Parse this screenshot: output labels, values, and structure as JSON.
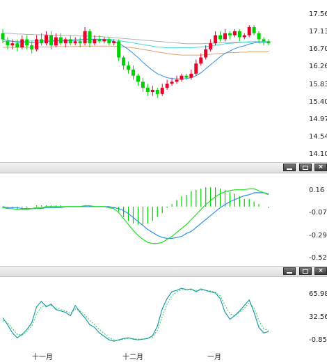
{
  "price_panel": {
    "axis_labels": [
      "17.56",
      "17.13",
      "16.70",
      "16.26",
      "15.83",
      "15.40",
      "14.97",
      "14.54",
      "14.10"
    ],
    "y_range": [
      14.1,
      17.56
    ]
  },
  "macd_panel": {
    "axis_labels": [
      "0.16",
      "-0.07",
      "-0.29",
      "-0.52"
    ],
    "y_range": [
      -0.52,
      0.16
    ]
  },
  "kdj_panel": {
    "axis_labels": [
      "65.98",
      "32.56",
      "-0.85"
    ],
    "y_range": [
      -0.85,
      65.98
    ]
  },
  "x_axis": {
    "labels": [
      "十一月",
      "十二月",
      "一月"
    ]
  },
  "panel_controls": {
    "minimize": "minimize",
    "maximize": "maximize",
    "close": "×"
  },
  "colors": {
    "up": "#e8002a",
    "down": "#00d000",
    "ma_short": "#2f8fe0",
    "ma_long": "#e0a070",
    "ma_grey": "#b0b0b0",
    "ma_cyan": "#40d8d8",
    "macd_dif": "#1fe01f",
    "macd_dea": "#2f8fe0",
    "k_line": "#1a9aa8",
    "d_line": "#22cc44"
  },
  "chart_data": [
    {
      "type": "candlestick",
      "ylim": [
        14.1,
        17.56
      ],
      "candles": [
        [
          17.1,
          16.95,
          17.2,
          16.85
        ],
        [
          16.9,
          16.8,
          17.0,
          16.7
        ],
        [
          16.8,
          16.85,
          16.95,
          16.7
        ],
        [
          16.85,
          16.75,
          16.95,
          16.65
        ],
        [
          16.75,
          16.95,
          17.05,
          16.7
        ],
        [
          16.95,
          16.8,
          17.05,
          16.7
        ],
        [
          16.8,
          16.7,
          16.9,
          16.6
        ],
        [
          16.7,
          16.95,
          17.05,
          16.65
        ],
        [
          16.95,
          16.85,
          17.1,
          16.8
        ],
        [
          16.85,
          17.05,
          17.15,
          16.8
        ],
        [
          17.05,
          16.8,
          17.15,
          16.7
        ],
        [
          16.8,
          17.0,
          17.1,
          16.75
        ],
        [
          17.0,
          16.85,
          17.1,
          16.8
        ],
        [
          16.85,
          16.95,
          17.0,
          16.75
        ],
        [
          16.95,
          16.85,
          17.05,
          16.8
        ],
        [
          16.85,
          16.9,
          17.0,
          16.8
        ],
        [
          16.9,
          16.85,
          17.0,
          16.75
        ],
        [
          16.85,
          17.15,
          17.25,
          16.8
        ],
        [
          17.15,
          16.85,
          17.2,
          16.75
        ],
        [
          16.85,
          16.95,
          17.05,
          16.8
        ],
        [
          16.95,
          16.9,
          17.05,
          16.85
        ],
        [
          16.9,
          16.95,
          17.0,
          16.85
        ],
        [
          16.95,
          16.85,
          17.0,
          16.8
        ],
        [
          16.85,
          16.9,
          16.95,
          16.8
        ],
        [
          16.9,
          16.5,
          16.95,
          16.4
        ],
        [
          16.5,
          16.3,
          16.55,
          16.2
        ],
        [
          16.3,
          16.2,
          16.4,
          16.1
        ],
        [
          16.2,
          16.05,
          16.3,
          15.95
        ],
        [
          16.05,
          15.9,
          16.1,
          15.8
        ],
        [
          15.9,
          15.75,
          16.0,
          15.65
        ],
        [
          15.75,
          15.65,
          15.85,
          15.55
        ],
        [
          15.65,
          15.7,
          15.8,
          15.55
        ],
        [
          15.7,
          15.6,
          15.75,
          15.5
        ],
        [
          15.6,
          15.75,
          15.85,
          15.55
        ],
        [
          15.75,
          15.85,
          15.95,
          15.7
        ],
        [
          15.85,
          15.9,
          16.0,
          15.8
        ],
        [
          15.9,
          15.95,
          16.05,
          15.85
        ],
        [
          15.95,
          16.05,
          16.1,
          15.9
        ],
        [
          16.05,
          16.0,
          16.1,
          15.95
        ],
        [
          16.0,
          16.1,
          16.2,
          15.95
        ],
        [
          16.1,
          16.35,
          16.45,
          16.05
        ],
        [
          16.35,
          16.5,
          16.6,
          16.3
        ],
        [
          16.5,
          16.7,
          16.8,
          16.45
        ],
        [
          16.7,
          16.85,
          16.95,
          16.65
        ],
        [
          16.85,
          17.05,
          17.15,
          16.8
        ],
        [
          17.05,
          16.95,
          17.15,
          16.9
        ],
        [
          16.95,
          17.1,
          17.2,
          16.9
        ],
        [
          17.1,
          17.05,
          17.15,
          16.95
        ],
        [
          17.05,
          17.15,
          17.2,
          17.0
        ],
        [
          17.15,
          17.0,
          17.2,
          16.9
        ],
        [
          17.0,
          17.05,
          17.1,
          16.95
        ],
        [
          17.05,
          17.25,
          17.3,
          17.0
        ],
        [
          17.25,
          17.1,
          17.3,
          17.05
        ],
        [
          17.1,
          16.95,
          17.15,
          16.85
        ],
        [
          16.95,
          16.9,
          17.0,
          16.8
        ],
        [
          16.9,
          16.85,
          16.95,
          16.8
        ]
      ],
      "ma_short": [
        16.95,
        16.92,
        16.9,
        16.88,
        16.88,
        16.87,
        16.86,
        16.87,
        16.88,
        16.9,
        16.9,
        16.91,
        16.91,
        16.91,
        16.92,
        16.92,
        16.93,
        16.95,
        16.95,
        16.95,
        16.95,
        16.94,
        16.92,
        16.9,
        16.85,
        16.78,
        16.7,
        16.6,
        16.5,
        16.38,
        16.28,
        16.18,
        16.1,
        16.05,
        16.0,
        15.98,
        15.97,
        15.97,
        15.98,
        16.0,
        16.05,
        16.12,
        16.22,
        16.32,
        16.42,
        16.52,
        16.6,
        16.66,
        16.72,
        16.76,
        16.79,
        16.83,
        16.86,
        16.88,
        16.88,
        16.88
      ],
      "ma_long": [
        16.75,
        16.75,
        16.75,
        16.75,
        16.75,
        16.75,
        16.75,
        16.76,
        16.76,
        16.76,
        16.76,
        16.77,
        16.77,
        16.77,
        16.77,
        16.77,
        16.78,
        16.78,
        16.78,
        16.78,
        16.78,
        16.78,
        16.78,
        16.78,
        16.77,
        16.76,
        16.75,
        16.74,
        16.72,
        16.7,
        16.68,
        16.66,
        16.64,
        16.62,
        16.6,
        16.58,
        16.57,
        16.56,
        16.56,
        16.56,
        16.56,
        16.56,
        16.57,
        16.58,
        16.59,
        16.6,
        16.61,
        16.62,
        16.62,
        16.63,
        16.63,
        16.64,
        16.64,
        16.64,
        16.64,
        16.64
      ],
      "ma_grey": [
        17.1,
        17.1,
        17.09,
        17.08,
        17.08,
        17.07,
        17.07,
        17.06,
        17.06,
        17.06,
        17.05,
        17.05,
        17.05,
        17.04,
        17.04,
        17.04,
        17.03,
        17.03,
        17.03,
        17.02,
        17.02,
        17.01,
        17.0,
        16.99,
        16.98,
        16.97,
        16.96,
        16.95,
        16.94,
        16.93,
        16.92,
        16.91,
        16.9,
        16.89,
        16.88,
        16.87,
        16.86,
        16.85,
        16.84,
        16.84,
        16.84,
        16.84,
        16.85,
        16.85,
        16.86,
        16.86,
        16.87,
        16.87,
        16.88,
        16.88,
        16.88,
        16.89,
        16.89,
        16.89,
        16.89,
        16.89
      ],
      "ma_cyan": [
        16.9,
        16.9,
        16.9,
        16.9,
        16.9,
        16.9,
        16.91,
        16.91,
        16.91,
        16.92,
        16.92,
        16.93,
        16.93,
        16.93,
        16.94,
        16.94,
        16.94,
        16.95,
        16.95,
        16.95,
        16.95,
        16.95,
        16.95,
        16.94,
        16.92,
        16.9,
        16.88,
        16.86,
        16.84,
        16.82,
        16.8,
        16.78,
        16.76,
        16.75,
        16.74,
        16.74,
        16.74,
        16.74,
        16.74,
        16.74,
        16.75,
        16.76,
        16.77,
        16.78,
        16.8,
        16.82,
        16.84,
        16.85,
        16.86,
        16.87,
        16.88,
        16.88,
        16.89,
        16.89,
        16.89,
        16.89
      ]
    },
    {
      "type": "bar",
      "ylim": [
        -0.52,
        0.16
      ],
      "dif": [
        -0.01,
        -0.02,
        -0.02,
        -0.03,
        -0.03,
        -0.03,
        -0.02,
        -0.01,
        -0.01,
        0.0,
        0.0,
        0.0,
        0.0,
        0.0,
        0.0,
        0.0,
        0.0,
        0.01,
        0.01,
        0.0,
        0.0,
        0.0,
        -0.01,
        -0.02,
        -0.06,
        -0.12,
        -0.18,
        -0.24,
        -0.29,
        -0.33,
        -0.36,
        -0.37,
        -0.37,
        -0.36,
        -0.33,
        -0.3,
        -0.26,
        -0.22,
        -0.18,
        -0.13,
        -0.08,
        -0.03,
        0.02,
        0.06,
        0.1,
        0.13,
        0.15,
        0.16,
        0.17,
        0.17,
        0.17,
        0.18,
        0.18,
        0.16,
        0.14,
        0.12
      ],
      "dea": [
        0.0,
        -0.01,
        -0.01,
        -0.01,
        -0.02,
        -0.02,
        -0.02,
        -0.02,
        -0.02,
        -0.01,
        -0.01,
        -0.01,
        -0.01,
        0.0,
        0.0,
        0.0,
        0.0,
        0.0,
        0.0,
        0.0,
        0.0,
        0.0,
        0.0,
        -0.01,
        -0.02,
        -0.04,
        -0.07,
        -0.11,
        -0.15,
        -0.19,
        -0.23,
        -0.26,
        -0.29,
        -0.31,
        -0.32,
        -0.32,
        -0.31,
        -0.3,
        -0.27,
        -0.25,
        -0.21,
        -0.17,
        -0.13,
        -0.09,
        -0.05,
        -0.01,
        0.02,
        0.05,
        0.07,
        0.09,
        0.11,
        0.12,
        0.14,
        0.14,
        0.14,
        0.13
      ],
      "histogram": [
        -0.01,
        -0.01,
        -0.01,
        -0.02,
        -0.01,
        -0.01,
        0.0,
        0.01,
        0.01,
        0.01,
        0.01,
        0.01,
        0.01,
        0.0,
        0.0,
        0.0,
        0.0,
        0.01,
        0.01,
        0.0,
        0.0,
        0.0,
        -0.01,
        -0.01,
        -0.04,
        -0.08,
        -0.11,
        -0.13,
        -0.14,
        -0.14,
        -0.13,
        -0.11,
        -0.08,
        -0.05,
        -0.01,
        0.02,
        0.05,
        0.08,
        0.09,
        0.12,
        0.13,
        0.14,
        0.15,
        0.15,
        0.15,
        0.14,
        0.13,
        0.11,
        0.1,
        0.08,
        0.06,
        0.06,
        0.04,
        0.02,
        0.0,
        -0.01
      ]
    },
    {
      "type": "line",
      "ylim": [
        -0.85,
        65.98
      ],
      "k": [
        32,
        22,
        10,
        3,
        8,
        15,
        25,
        48,
        56,
        48,
        52,
        44,
        42,
        40,
        35,
        50,
        40,
        32,
        22,
        18,
        10,
        5,
        0,
        -2,
        0,
        2,
        3,
        1,
        0,
        1,
        2,
        6,
        20,
        45,
        60,
        70,
        72,
        75,
        73,
        74,
        70,
        74,
        72,
        70,
        68,
        60,
        40,
        30,
        35,
        42,
        50,
        58,
        40,
        18,
        10,
        12
      ],
      "d": [
        28,
        25,
        16,
        8,
        7,
        12,
        20,
        38,
        48,
        50,
        50,
        46,
        44,
        42,
        38,
        45,
        42,
        36,
        28,
        22,
        15,
        9,
        3,
        0,
        -1,
        1,
        2,
        2,
        1,
        1,
        2,
        4,
        14,
        34,
        52,
        64,
        70,
        73,
        73,
        73,
        72,
        72,
        72,
        71,
        69,
        64,
        50,
        38,
        35,
        40,
        46,
        54,
        46,
        28,
        16,
        14
      ]
    }
  ]
}
